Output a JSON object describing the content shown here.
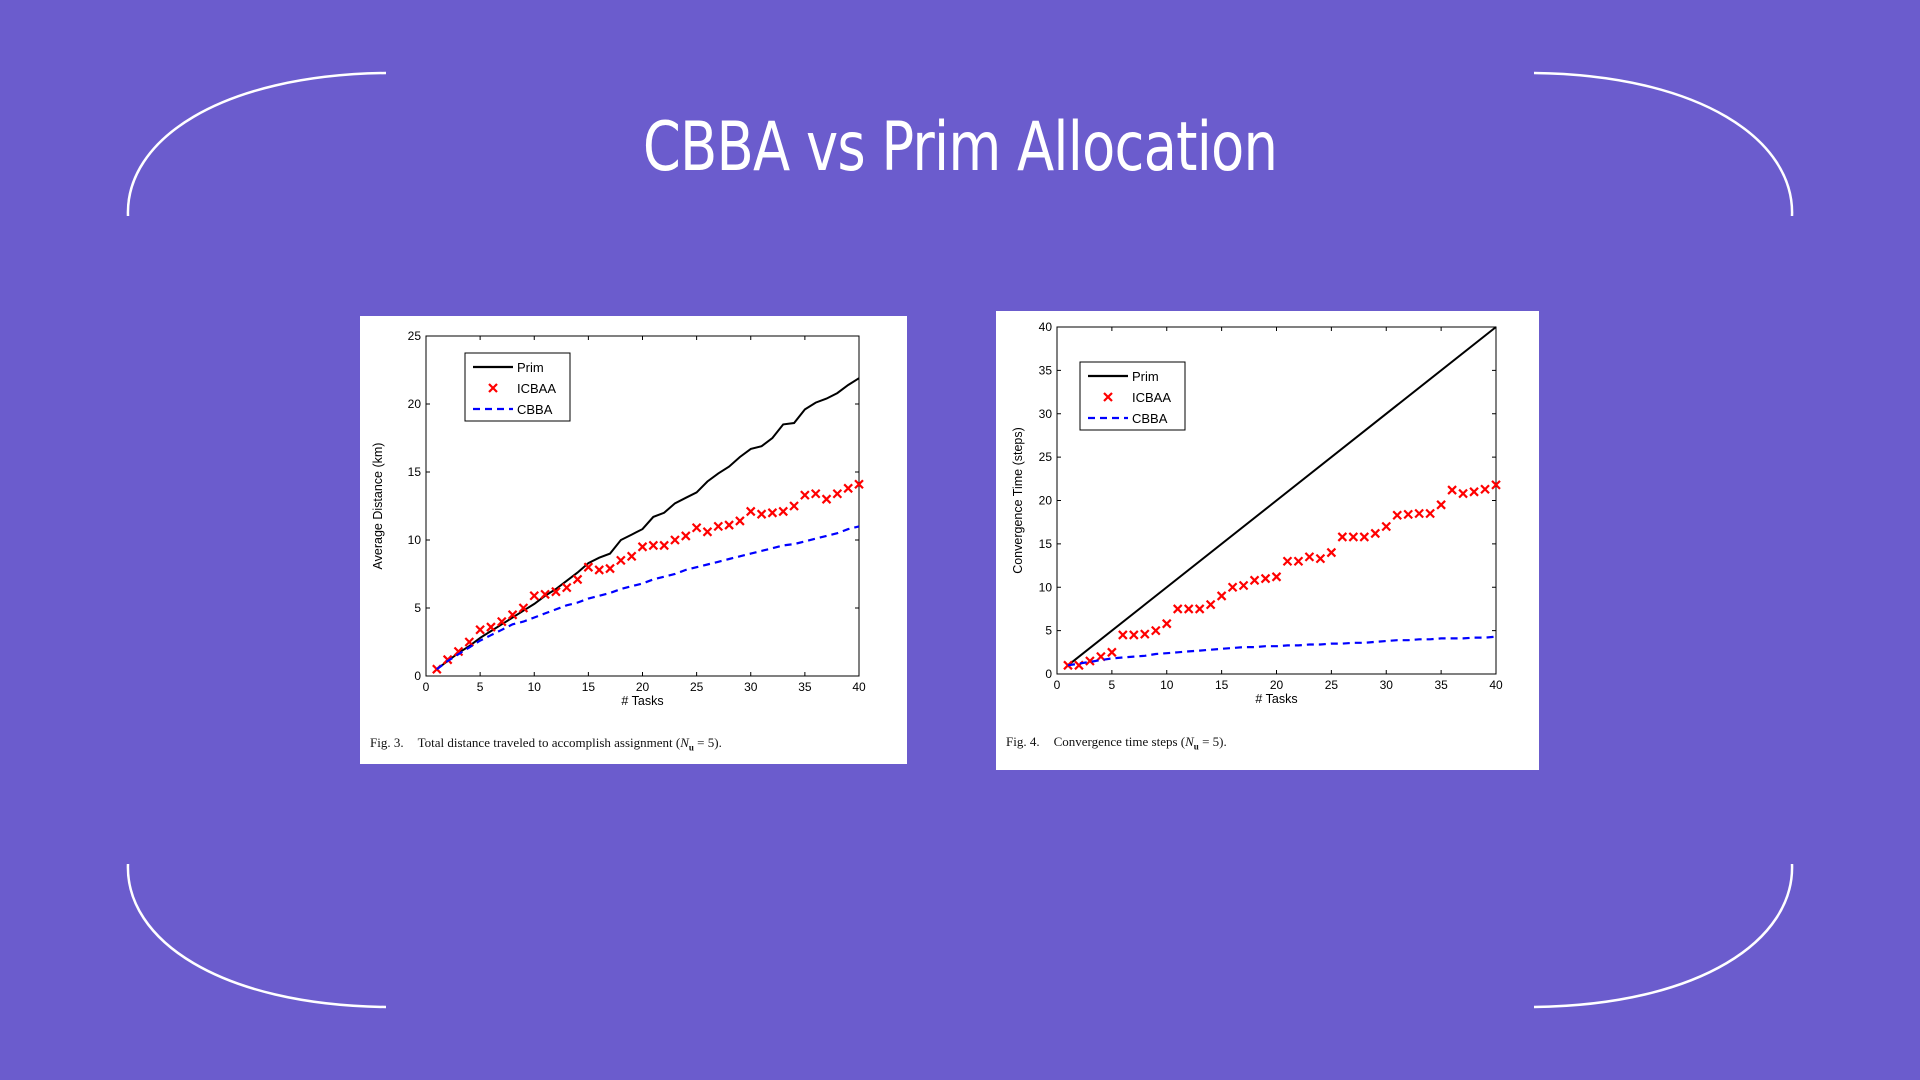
{
  "slide": {
    "title": "CBBA vs Prim Allocation",
    "background": "#6b5ccd",
    "frame_color": "#ffffff"
  },
  "figures": [
    {
      "caption": {
        "label": "Fig. 3.",
        "text": "Total distance traveled to accomplish assignment (",
        "variable": "N",
        "subscript": "u",
        "equals": " = 5)."
      }
    },
    {
      "caption": {
        "label": "Fig. 4.",
        "text": "Convergence time steps (",
        "variable": "N",
        "subscript": "u",
        "equals": " = 5)."
      }
    }
  ],
  "chart_data": [
    {
      "type": "line",
      "title": "",
      "xlabel": "# Tasks",
      "ylabel": "Average Distance (km)",
      "xlim": [
        0,
        40
      ],
      "ylim": [
        0,
        25
      ],
      "xticks": [
        0,
        5,
        10,
        15,
        20,
        25,
        30,
        35,
        40
      ],
      "yticks": [
        0,
        5,
        10,
        15,
        20,
        25
      ],
      "grid": false,
      "legend_position": "top-left",
      "series": [
        {
          "name": "Prim",
          "style": "solid",
          "marker": "none",
          "color": "#000000",
          "x": [
            1,
            2,
            3,
            4,
            5,
            6,
            7,
            8,
            9,
            10,
            11,
            12,
            13,
            14,
            15,
            16,
            17,
            18,
            19,
            20,
            21,
            22,
            23,
            24,
            25,
            26,
            27,
            28,
            29,
            30,
            31,
            32,
            33,
            34,
            35,
            36,
            37,
            38,
            39,
            40
          ],
          "y": [
            0.5,
            1.1,
            1.7,
            2.2,
            2.8,
            3.3,
            3.8,
            4.3,
            4.8,
            5.3,
            5.9,
            6.4,
            7.0,
            7.6,
            8.3,
            8.7,
            9.0,
            10.0,
            10.4,
            10.8,
            11.7,
            12.0,
            12.7,
            13.1,
            13.5,
            14.3,
            14.9,
            15.4,
            16.1,
            16.7,
            16.9,
            17.5,
            18.5,
            18.6,
            19.6,
            20.1,
            20.4,
            20.8,
            21.4,
            21.9
          ]
        },
        {
          "name": "ICBAA",
          "style": "none",
          "marker": "x",
          "color": "#ff0000",
          "x": [
            1,
            2,
            3,
            4,
            5,
            6,
            7,
            8,
            9,
            10,
            11,
            12,
            13,
            14,
            15,
            16,
            17,
            18,
            19,
            20,
            21,
            22,
            23,
            24,
            25,
            26,
            27,
            28,
            29,
            30,
            31,
            32,
            33,
            34,
            35,
            36,
            37,
            38,
            39,
            40
          ],
          "y": [
            0.5,
            1.2,
            1.8,
            2.5,
            3.4,
            3.6,
            4.0,
            4.5,
            5.0,
            5.9,
            6.0,
            6.2,
            6.5,
            7.1,
            8.0,
            7.8,
            7.9,
            8.5,
            8.8,
            9.5,
            9.6,
            9.6,
            10.0,
            10.3,
            10.9,
            10.6,
            11.0,
            11.1,
            11.4,
            12.1,
            11.9,
            12.0,
            12.1,
            12.5,
            13.3,
            13.4,
            13.0,
            13.4,
            13.8,
            14.1
          ]
        },
        {
          "name": "CBBA",
          "style": "dashed",
          "marker": "none",
          "color": "#0000ff",
          "x": [
            1,
            2,
            3,
            4,
            5,
            6,
            7,
            8,
            9,
            10,
            11,
            12,
            13,
            14,
            15,
            16,
            17,
            18,
            19,
            20,
            21,
            22,
            23,
            24,
            25,
            26,
            27,
            28,
            29,
            30,
            31,
            32,
            33,
            34,
            35,
            36,
            37,
            38,
            39,
            40
          ],
          "y": [
            0.5,
            1.1,
            1.6,
            2.1,
            2.6,
            3.0,
            3.4,
            3.8,
            4.0,
            4.3,
            4.6,
            4.9,
            5.2,
            5.4,
            5.7,
            5.9,
            6.1,
            6.4,
            6.6,
            6.8,
            7.1,
            7.3,
            7.5,
            7.8,
            8.0,
            8.2,
            8.4,
            8.6,
            8.8,
            9.0,
            9.2,
            9.4,
            9.6,
            9.7,
            9.9,
            10.1,
            10.3,
            10.5,
            10.8,
            11.0
          ]
        }
      ]
    },
    {
      "type": "line",
      "title": "",
      "xlabel": "# Tasks",
      "ylabel": "Convergence Time (steps)",
      "xlim": [
        0,
        40
      ],
      "ylim": [
        0,
        40
      ],
      "xticks": [
        0,
        5,
        10,
        15,
        20,
        25,
        30,
        35,
        40
      ],
      "yticks": [
        0,
        5,
        10,
        15,
        20,
        25,
        30,
        35,
        40
      ],
      "grid": false,
      "legend_position": "top-left",
      "series": [
        {
          "name": "Prim",
          "style": "solid",
          "marker": "none",
          "color": "#000000",
          "x": [
            1,
            40
          ],
          "y": [
            1,
            40
          ]
        },
        {
          "name": "ICBAA",
          "style": "none",
          "marker": "x",
          "color": "#ff0000",
          "x": [
            1,
            2,
            3,
            4,
            5,
            6,
            7,
            8,
            9,
            10,
            11,
            12,
            13,
            14,
            15,
            16,
            17,
            18,
            19,
            20,
            21,
            22,
            23,
            24,
            25,
            26,
            27,
            28,
            29,
            30,
            31,
            32,
            33,
            34,
            35,
            36,
            37,
            38,
            39,
            40
          ],
          "y": [
            1.0,
            1.0,
            1.5,
            2.0,
            2.5,
            4.5,
            4.5,
            4.6,
            5.0,
            5.8,
            7.5,
            7.5,
            7.5,
            8.0,
            9.0,
            10.0,
            10.2,
            10.8,
            11.0,
            11.2,
            13.0,
            13.0,
            13.5,
            13.3,
            14.0,
            15.8,
            15.8,
            15.8,
            16.2,
            17.0,
            18.3,
            18.4,
            18.5,
            18.5,
            19.5,
            21.2,
            20.8,
            21.0,
            21.3,
            21.8
          ]
        },
        {
          "name": "CBBA",
          "style": "dashed",
          "marker": "none",
          "color": "#0000ff",
          "x": [
            1,
            2,
            3,
            4,
            5,
            6,
            7,
            8,
            9,
            10,
            11,
            12,
            13,
            14,
            15,
            16,
            17,
            18,
            19,
            20,
            21,
            22,
            23,
            24,
            25,
            26,
            27,
            28,
            29,
            30,
            31,
            32,
            33,
            34,
            35,
            36,
            37,
            38,
            39,
            40
          ],
          "y": [
            1.0,
            1.2,
            1.4,
            1.6,
            1.8,
            1.9,
            2.0,
            2.1,
            2.3,
            2.4,
            2.5,
            2.6,
            2.7,
            2.8,
            2.9,
            3.0,
            3.1,
            3.1,
            3.2,
            3.2,
            3.3,
            3.3,
            3.4,
            3.4,
            3.5,
            3.5,
            3.6,
            3.6,
            3.7,
            3.8,
            3.9,
            3.9,
            4.0,
            4.0,
            4.1,
            4.1,
            4.1,
            4.2,
            4.2,
            4.3
          ]
        }
      ]
    }
  ]
}
